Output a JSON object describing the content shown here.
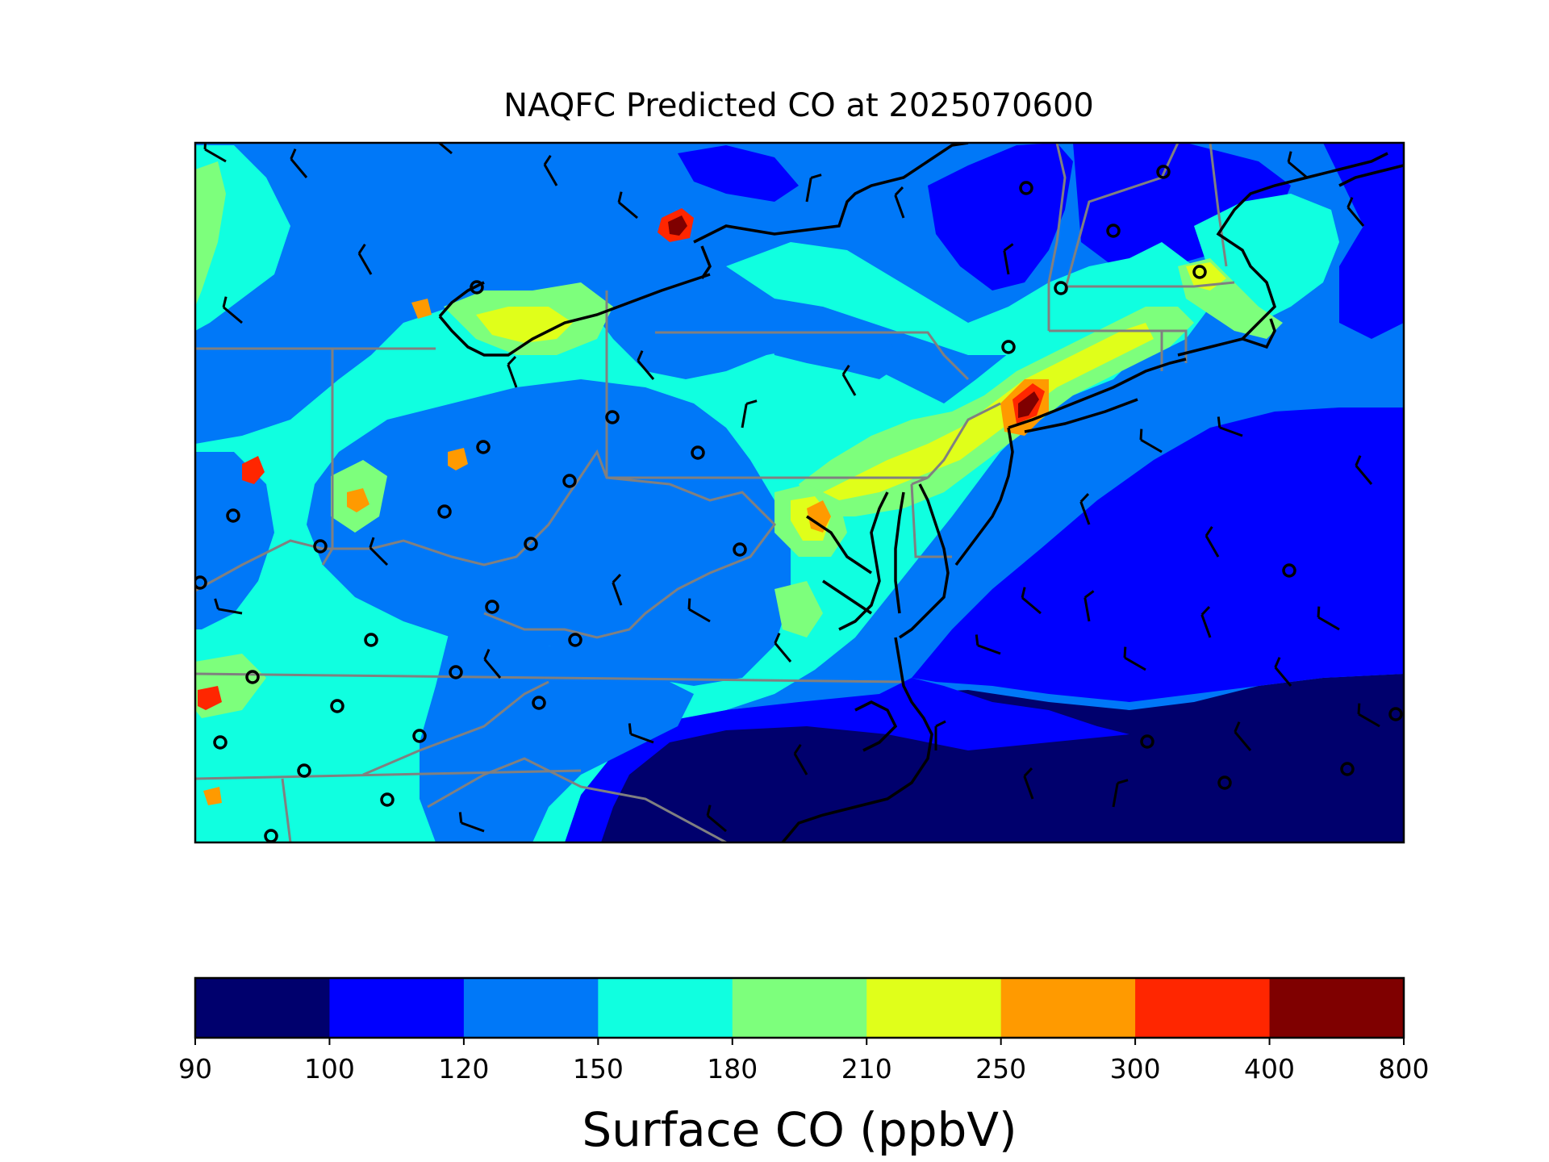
{
  "figure": {
    "title": "NAQFC Predicted CO at 2025070600"
  },
  "colorbar": {
    "label": "Surface CO (ppbV)",
    "levels": [
      "90",
      "100",
      "120",
      "150",
      "180",
      "210",
      "250",
      "300",
      "400",
      "800"
    ],
    "colors": [
      "#00006d",
      "#0000ff",
      "#0078f8",
      "#10ffe0",
      "#7dff7c",
      "#e0ff1a",
      "#ff9a00",
      "#ff2600",
      "#7f0000"
    ]
  },
  "colors": {
    "state_borders": "#808080",
    "coastlines": "#000000",
    "wind_barbs": "#000000",
    "frame": "#000000"
  },
  "legend_items": {
    "calm_marker": "calm-wind-circle",
    "barb_marker": "wind-barb"
  }
}
